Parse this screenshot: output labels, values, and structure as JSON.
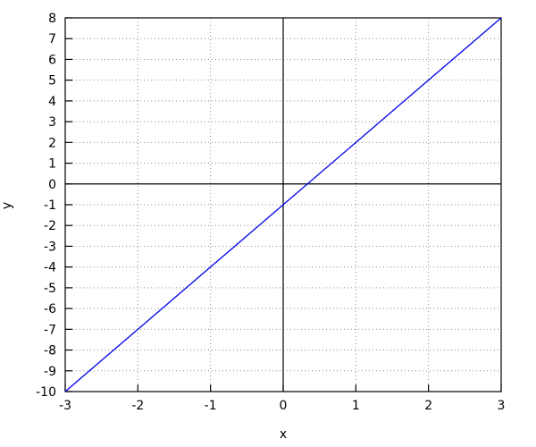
{
  "chart_data": {
    "type": "line",
    "title": "",
    "xlabel": "x",
    "ylabel": "y",
    "xlim": [
      -3,
      3
    ],
    "ylim": [
      -10,
      8
    ],
    "xticks": [
      -3,
      -2,
      -1,
      0,
      1,
      2,
      3
    ],
    "yticks": [
      -10,
      -9,
      -8,
      -7,
      -6,
      -5,
      -4,
      -3,
      -2,
      -1,
      0,
      1,
      2,
      3,
      4,
      5,
      6,
      7,
      8
    ],
    "grid": "dotted",
    "legend": "none",
    "zero_axes": true,
    "series": [
      {
        "x": [
          -3,
          -2,
          -1,
          0,
          1,
          2,
          3
        ],
        "y": [
          -10,
          -7,
          -4,
          -1,
          2,
          5,
          8
        ],
        "color": "#0000ee"
      }
    ],
    "colors": {
      "background": "#ffffff",
      "border": "#000000",
      "grid": "#8c8c8c",
      "zero_axis": "#000000",
      "tick_label": "#000000"
    }
  }
}
